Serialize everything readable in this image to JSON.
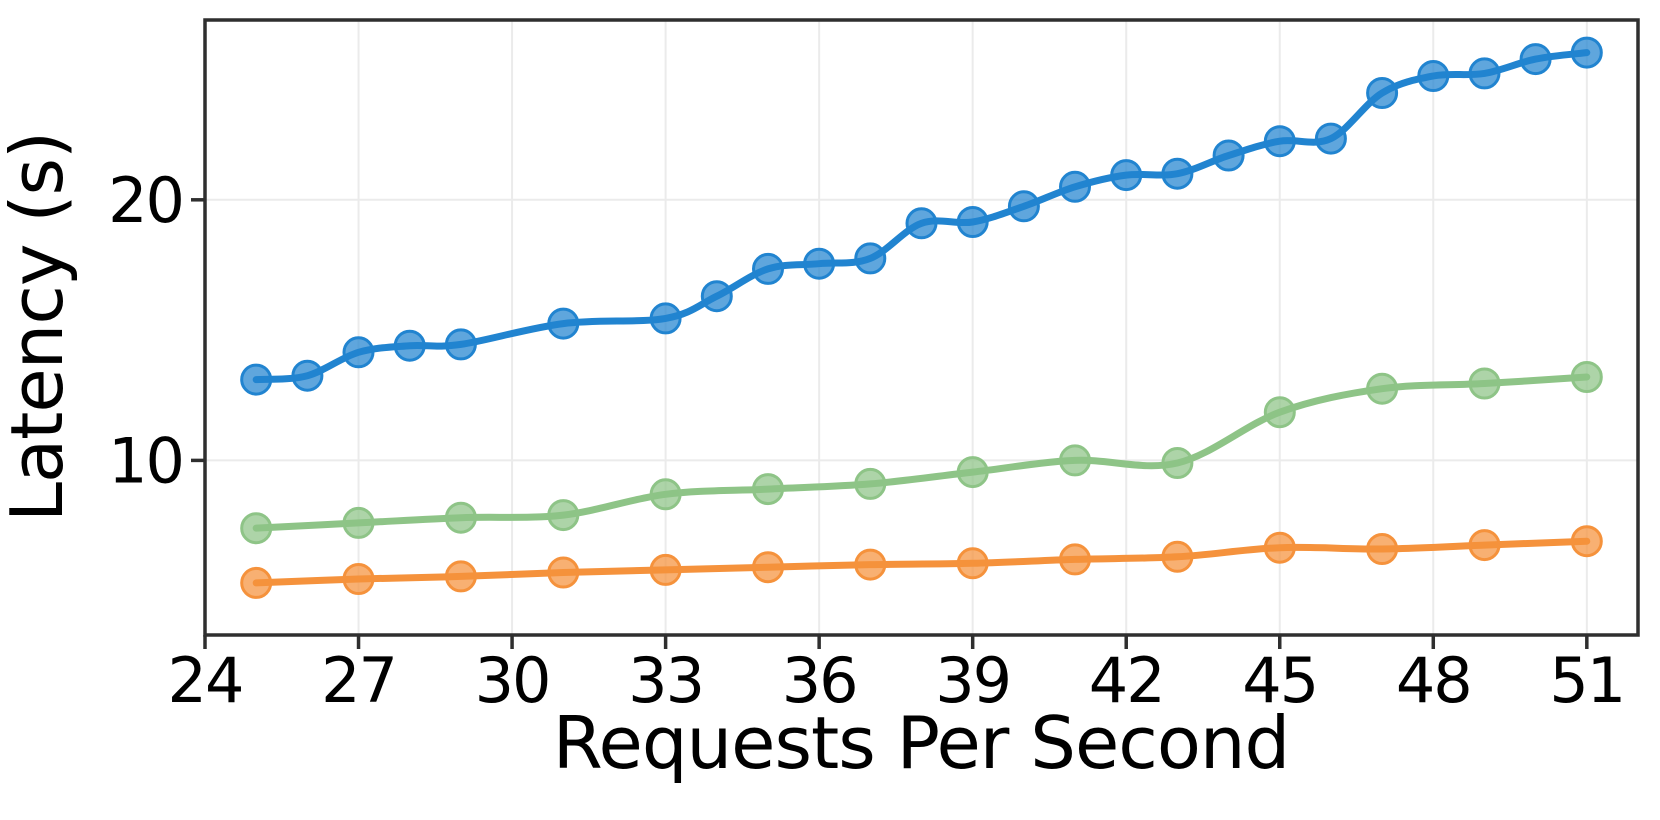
{
  "chart_data": {
    "type": "line",
    "title": "",
    "xlabel": "Requests Per Second",
    "ylabel": "Latency (s)",
    "xlim": [
      24,
      52
    ],
    "ylim": [
      3.3,
      26.9
    ],
    "x_ticks": [
      24,
      27,
      30,
      33,
      36,
      39,
      42,
      45,
      48,
      51
    ],
    "y_ticks": [
      10,
      20
    ],
    "grid": true,
    "legend": "none",
    "styles": {
      "background": "#ffffff",
      "grid_color": "#ebebeb",
      "axis_color": "#2f2f2f",
      "text_color": "#000000"
    },
    "series": [
      {
        "id": "blue",
        "color": "#2184d0",
        "x": [
          25,
          26,
          27,
          28,
          29,
          31,
          33,
          34,
          35,
          36,
          37,
          38,
          39,
          40,
          41,
          42,
          43,
          44,
          45,
          46,
          47,
          48,
          49,
          50,
          51
        ],
        "y": [
          13.1,
          13.25,
          14.15,
          14.4,
          14.45,
          15.25,
          15.45,
          16.3,
          17.35,
          17.55,
          17.75,
          19.1,
          19.15,
          19.75,
          20.5,
          20.95,
          21.0,
          21.7,
          22.25,
          22.35,
          24.1,
          24.75,
          24.85,
          25.4,
          25.65
        ]
      },
      {
        "id": "green",
        "color": "#8ec487",
        "x": [
          25,
          27,
          29,
          31,
          33,
          35,
          37,
          39,
          41,
          43,
          45,
          47,
          49,
          51
        ],
        "y": [
          7.4,
          7.6,
          7.8,
          7.9,
          8.7,
          8.9,
          9.1,
          9.55,
          10.0,
          9.9,
          11.85,
          12.75,
          12.95,
          13.2
        ]
      },
      {
        "id": "orange",
        "color": "#f5923c",
        "x": [
          25,
          27,
          29,
          31,
          33,
          35,
          37,
          39,
          41,
          43,
          45,
          47,
          49,
          51
        ],
        "y": [
          5.3,
          5.45,
          5.55,
          5.7,
          5.8,
          5.9,
          6.0,
          6.05,
          6.2,
          6.3,
          6.65,
          6.6,
          6.75,
          6.9
        ]
      }
    ]
  }
}
